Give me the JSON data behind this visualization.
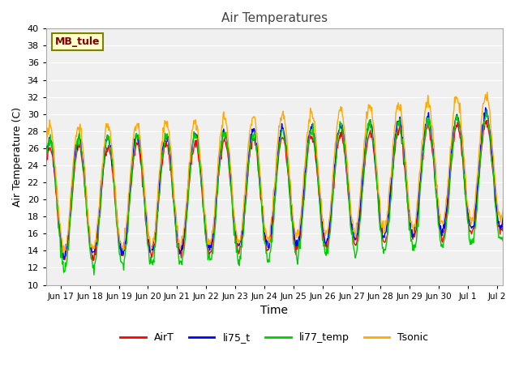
{
  "title": "Air Temperatures",
  "xlabel": "Time",
  "ylabel": "Air Temperature (C)",
  "ylim": [
    10,
    40
  ],
  "background_color": "#f0f0f0",
  "plot_bg_color": "#f0f0f0",
  "fig_bg_color": "#ffffff",
  "grid_color": "#ffffff",
  "annotation_text": "MB_tule",
  "annotation_box_color": "#ffffcc",
  "annotation_text_color": "#800000",
  "annotation_border_color": "#808000",
  "colors": {
    "AirT": "#ff0000",
    "li75_t": "#0000ff",
    "li77_temp": "#00cc00",
    "Tsonic": "#ffaa00"
  },
  "linewidth": 1.0,
  "tick_labels": [
    "Jun 17",
    "Jun 18",
    "Jun 19",
    "Jun 20",
    "Jun 21",
    "Jun 22",
    "Jun 23",
    "Jun 24",
    "Jun 25",
    "Jun 26",
    "Jun 27",
    "Jun 28",
    "Jun 29",
    "Jun 30",
    "Jul 1",
    "Jul 2"
  ],
  "tick_positions": [
    17,
    18,
    19,
    20,
    21,
    22,
    23,
    24,
    25,
    26,
    27,
    28,
    29,
    30,
    31,
    32
  ]
}
